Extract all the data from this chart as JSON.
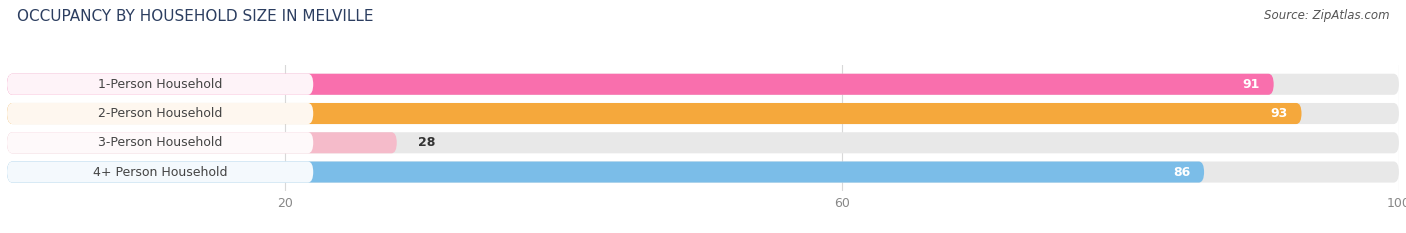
{
  "title": "OCCUPANCY BY HOUSEHOLD SIZE IN MELVILLE",
  "source": "Source: ZipAtlas.com",
  "categories": [
    "1-Person Household",
    "2-Person Household",
    "3-Person Household",
    "4+ Person Household"
  ],
  "values": [
    91,
    93,
    28,
    86
  ],
  "bar_colors": [
    "#F96FAD",
    "#F5A83C",
    "#F5BBCA",
    "#7BBDE8"
  ],
  "bar_bg_color": "#E8E8E8",
  "label_bg_color": "#FFFFFF",
  "xlim": [
    0,
    100
  ],
  "xticks": [
    20,
    60,
    100
  ],
  "label_value_colors": [
    "white",
    "white",
    "black",
    "white"
  ],
  "figsize": [
    14.06,
    2.33
  ],
  "dpi": 100,
  "bar_height": 0.72,
  "title_fontsize": 11,
  "label_fontsize": 9,
  "value_fontsize": 9,
  "source_fontsize": 8.5,
  "tick_fontsize": 9,
  "background_color": "#FFFFFF",
  "title_color": "#2C3E60",
  "source_color": "#555555",
  "tick_color": "#888888",
  "grid_color": "#D8D8D8"
}
